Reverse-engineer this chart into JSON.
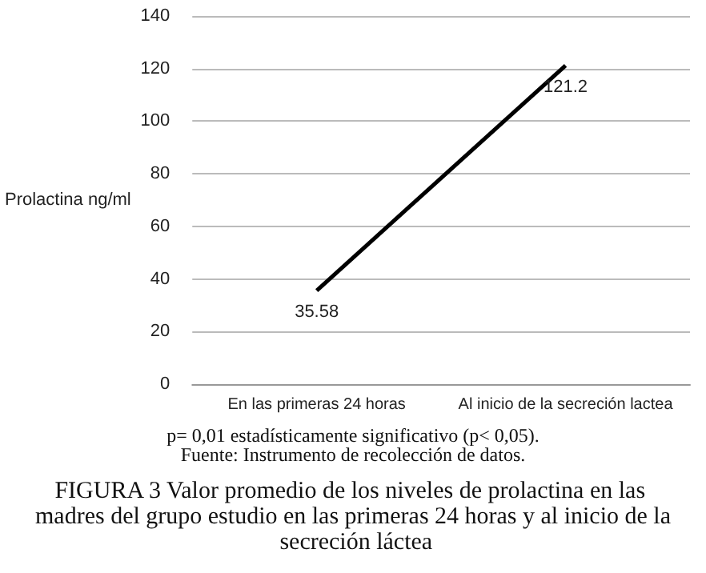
{
  "chart_data": {
    "type": "line",
    "title": "FIGURA 3 Valor promedio de los niveles de prolactina en las madres del grupo estudio en las primeras 24 horas y al inicio de la secreción láctea",
    "ylabel": "Prolactina ng/ml",
    "categories": [
      "En las primeras 24 horas",
      "Al inicio de la secreción lactea"
    ],
    "series": [
      {
        "color": "#000000",
        "values": [
          35.58,
          121.2
        ]
      }
    ],
    "data_labels": true,
    "ylim": [
      0,
      140
    ],
    "yticks": [
      0,
      20,
      40,
      60,
      80,
      100,
      120,
      140
    ],
    "grid": "y",
    "marker": "none",
    "annotations": [
      "p= 0,01 estadísticamente significativo (p< 0,05).",
      "Fuente: Instrumento de recolección de datos."
    ]
  }
}
